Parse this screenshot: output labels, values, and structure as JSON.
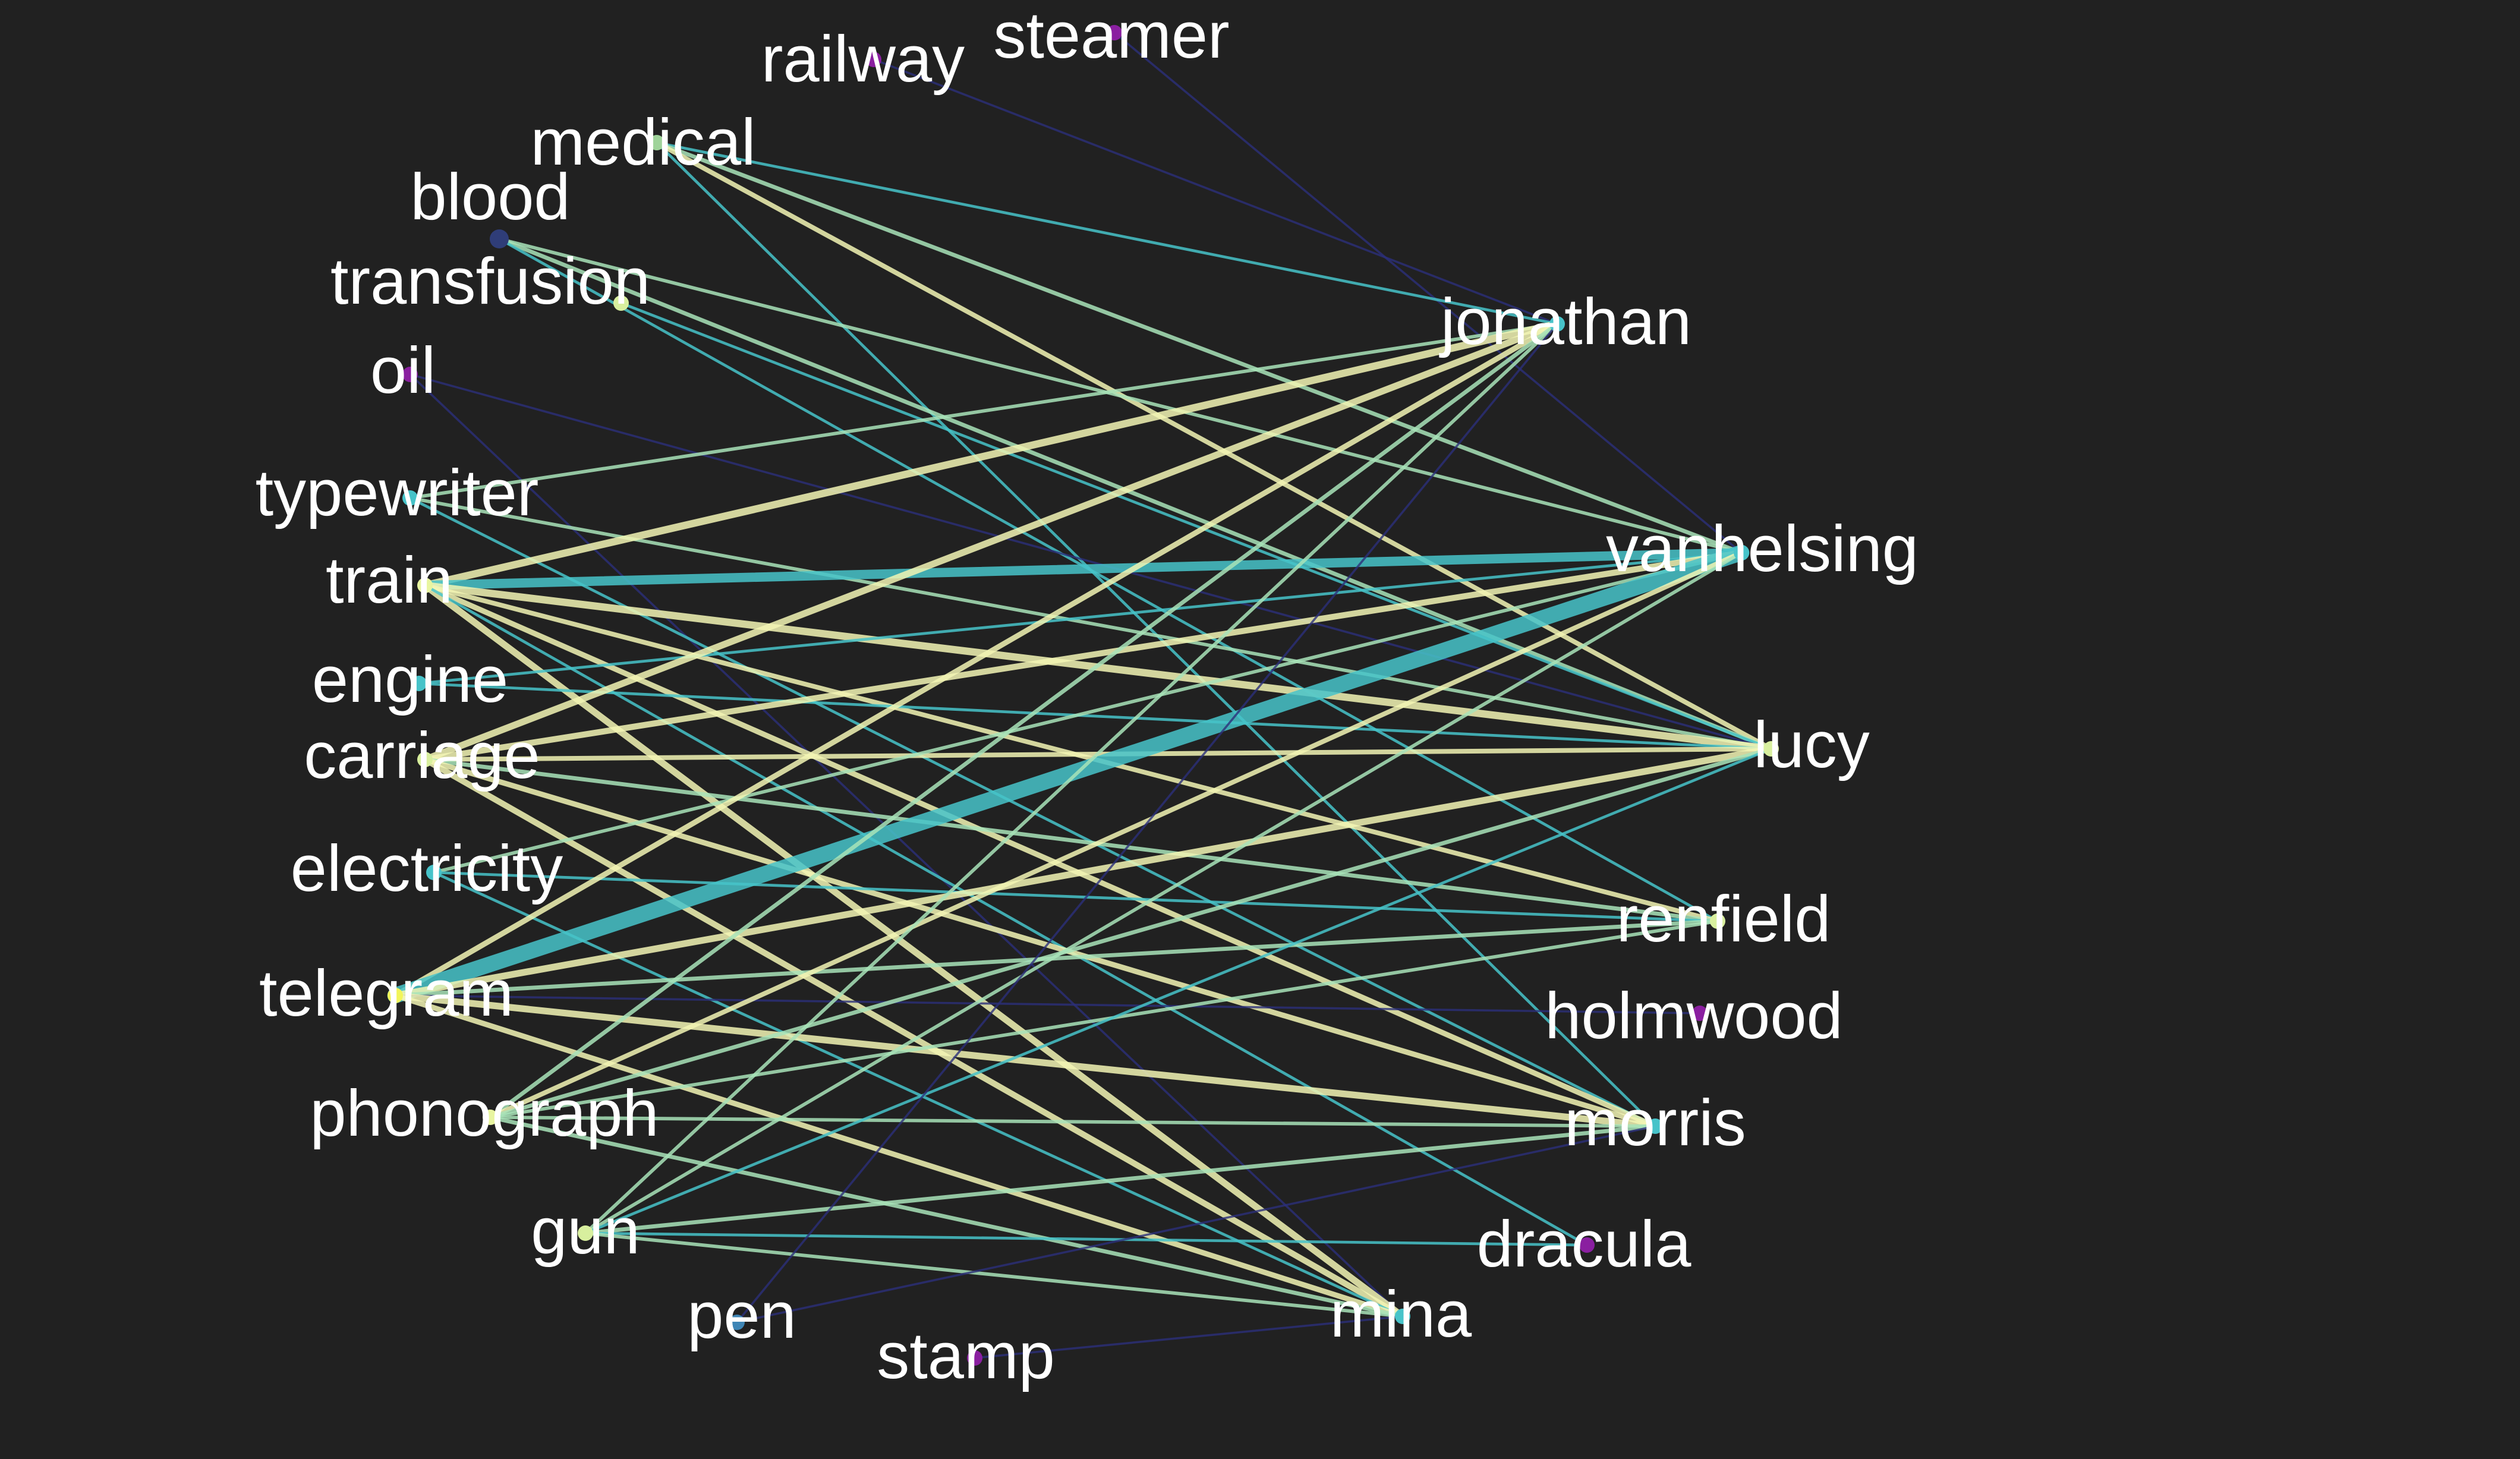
{
  "diagram": {
    "type": "bipartite network",
    "background_color": "#212121",
    "edge_colormap": [
      "#2c2f7a",
      "#3f86b6",
      "#47c3c9",
      "#a8e3b8",
      "#f2f5b4"
    ],
    "terms": [
      {
        "id": "railway",
        "label": "railway",
        "node_color": "#8a1fa0"
      },
      {
        "id": "steamer",
        "label": "steamer",
        "node_color": "#8a1fa0"
      },
      {
        "id": "medical",
        "label": "medical",
        "node_color": "#9fd39a"
      },
      {
        "id": "blood",
        "label": "blood",
        "node_color": "#2f3d78"
      },
      {
        "id": "transfusion",
        "label": "transfusion",
        "node_color": "#d8ef9e"
      },
      {
        "id": "oil",
        "label": "oil",
        "node_color": "#8a1fa0"
      },
      {
        "id": "typewriter",
        "label": "typewriter",
        "node_color": "#47c3c9"
      },
      {
        "id": "train",
        "label": "train",
        "node_color": "#e8f5a0"
      },
      {
        "id": "engine",
        "label": "engine",
        "node_color": "#47c3c9"
      },
      {
        "id": "carriage",
        "label": "carriage",
        "node_color": "#d8ef9e"
      },
      {
        "id": "electricity",
        "label": "electricity",
        "node_color": "#47c3c9"
      },
      {
        "id": "telegram",
        "label": "telegram",
        "node_color": "#f2f55a"
      },
      {
        "id": "phonograph",
        "label": "phonograph",
        "node_color": "#e8f5a0"
      },
      {
        "id": "gun",
        "label": "gun",
        "node_color": "#d8ef9e"
      },
      {
        "id": "pen",
        "label": "pen",
        "node_color": "#3f86b6"
      },
      {
        "id": "stamp",
        "label": "stamp",
        "node_color": "#8a1fa0"
      }
    ],
    "characters": [
      {
        "id": "jonathan",
        "label": "jonathan",
        "node_color": "#47c3c9"
      },
      {
        "id": "vanhelsing",
        "label": "vanhelsing",
        "node_color": "#47c3c9"
      },
      {
        "id": "lucy",
        "label": "lucy",
        "node_color": "#d8ef9e"
      },
      {
        "id": "renfield",
        "label": "renfield",
        "node_color": "#d8ef9e"
      },
      {
        "id": "holmwood",
        "label": "holmwood",
        "node_color": "#8a1fa0"
      },
      {
        "id": "morris",
        "label": "morris",
        "node_color": "#47c3c9"
      },
      {
        "id": "dracula",
        "label": "dracula",
        "node_color": "#8a1fa0"
      },
      {
        "id": "mina",
        "label": "mina",
        "node_color": "#47c3c9"
      }
    ],
    "edges": [
      {
        "source": "railway",
        "target": "jonathan",
        "weight": 1
      },
      {
        "source": "steamer",
        "target": "vanhelsing",
        "weight": 1
      },
      {
        "source": "medical",
        "target": "jonathan",
        "weight": 2
      },
      {
        "source": "medical",
        "target": "vanhelsing",
        "weight": 4
      },
      {
        "source": "medical",
        "target": "lucy",
        "weight": 5
      },
      {
        "source": "medical",
        "target": "morris",
        "weight": 2
      },
      {
        "source": "blood",
        "target": "vanhelsing",
        "weight": 3
      },
      {
        "source": "blood",
        "target": "lucy",
        "weight": 4
      },
      {
        "source": "blood",
        "target": "renfield",
        "weight": 2
      },
      {
        "source": "transfusion",
        "target": "lucy",
        "weight": 2
      },
      {
        "source": "oil",
        "target": "lucy",
        "weight": 1
      },
      {
        "source": "oil",
        "target": "mina",
        "weight": 1
      },
      {
        "source": "typewriter",
        "target": "jonathan",
        "weight": 3
      },
      {
        "source": "typewriter",
        "target": "lucy",
        "weight": 3
      },
      {
        "source": "typewriter",
        "target": "morris",
        "weight": 2
      },
      {
        "source": "train",
        "target": "jonathan",
        "weight": 9
      },
      {
        "source": "train",
        "target": "vanhelsing",
        "weight": 12
      },
      {
        "source": "train",
        "target": "lucy",
        "weight": 9
      },
      {
        "source": "train",
        "target": "renfield",
        "weight": 5
      },
      {
        "source": "train",
        "target": "morris",
        "weight": 6
      },
      {
        "source": "train",
        "target": "mina",
        "weight": 8
      },
      {
        "source": "train",
        "target": "dracula",
        "weight": 2
      },
      {
        "source": "engine",
        "target": "vanhelsing",
        "weight": 2
      },
      {
        "source": "engine",
        "target": "lucy",
        "weight": 2
      },
      {
        "source": "carriage",
        "target": "jonathan",
        "weight": 8
      },
      {
        "source": "carriage",
        "target": "vanhelsing",
        "weight": 7
      },
      {
        "source": "carriage",
        "target": "lucy",
        "weight": 5
      },
      {
        "source": "carriage",
        "target": "renfield",
        "weight": 4
      },
      {
        "source": "carriage",
        "target": "morris",
        "weight": 6
      },
      {
        "source": "carriage",
        "target": "mina",
        "weight": 7
      },
      {
        "source": "electricity",
        "target": "vanhelsing",
        "weight": 3
      },
      {
        "source": "electricity",
        "target": "renfield",
        "weight": 2
      },
      {
        "source": "electricity",
        "target": "mina",
        "weight": 2
      },
      {
        "source": "telegram",
        "target": "jonathan",
        "weight": 6
      },
      {
        "source": "telegram",
        "target": "vanhelsing",
        "weight": 22
      },
      {
        "source": "telegram",
        "target": "lucy",
        "weight": 8
      },
      {
        "source": "telegram",
        "target": "renfield",
        "weight": 4
      },
      {
        "source": "telegram",
        "target": "holmwood",
        "weight": 1
      },
      {
        "source": "telegram",
        "target": "morris",
        "weight": 8
      },
      {
        "source": "telegram",
        "target": "mina",
        "weight": 6
      },
      {
        "source": "phonograph",
        "target": "jonathan",
        "weight": 4
      },
      {
        "source": "phonograph",
        "target": "vanhelsing",
        "weight": 5
      },
      {
        "source": "phonograph",
        "target": "lucy",
        "weight": 4
      },
      {
        "source": "phonograph",
        "target": "renfield",
        "weight": 3
      },
      {
        "source": "phonograph",
        "target": "morris",
        "weight": 3
      },
      {
        "source": "phonograph",
        "target": "mina",
        "weight": 4
      },
      {
        "source": "gun",
        "target": "jonathan",
        "weight": 3
      },
      {
        "source": "gun",
        "target": "vanhelsing",
        "weight": 3
      },
      {
        "source": "gun",
        "target": "lucy",
        "weight": 2
      },
      {
        "source": "gun",
        "target": "morris",
        "weight": 4
      },
      {
        "source": "gun",
        "target": "dracula",
        "weight": 2
      },
      {
        "source": "gun",
        "target": "mina",
        "weight": 3
      },
      {
        "source": "pen",
        "target": "jonathan",
        "weight": 1
      },
      {
        "source": "pen",
        "target": "morris",
        "weight": 1
      },
      {
        "source": "stamp",
        "target": "mina",
        "weight": 1
      }
    ]
  }
}
